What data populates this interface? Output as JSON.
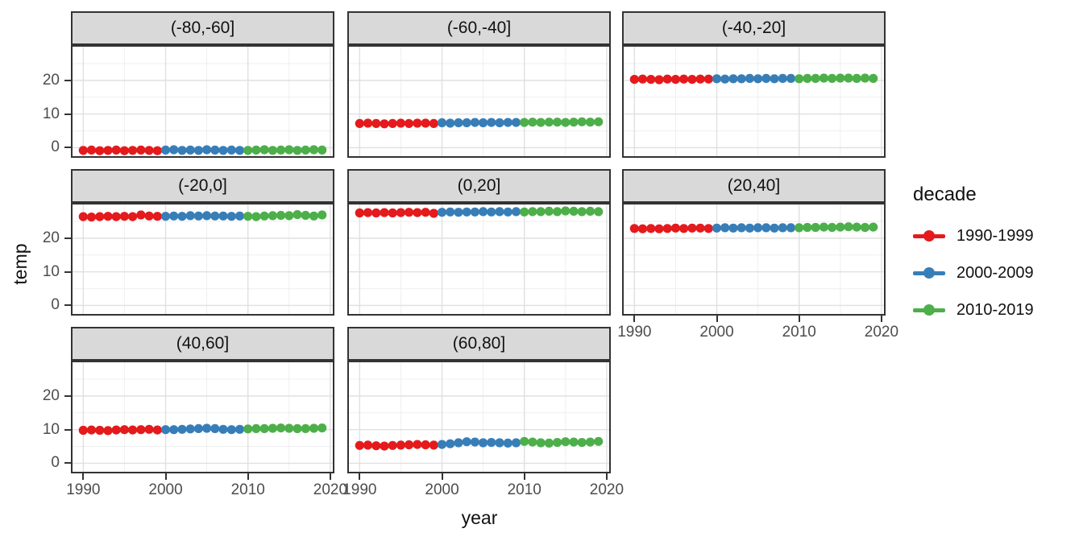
{
  "axes": {
    "x_label": "year",
    "y_label": "temp",
    "x_ticks": [
      "1990",
      "2000",
      "2010",
      "2020"
    ],
    "y_ticks": [
      "20",
      "10",
      "0"
    ]
  },
  "legend": {
    "title": "decade",
    "items": [
      {
        "label": "1990-1999",
        "color": "#E41A1C"
      },
      {
        "label": "2000-2009",
        "color": "#377EB8"
      },
      {
        "label": "2010-2019",
        "color": "#4DAF4A"
      }
    ]
  },
  "chart_data": {
    "type": "scatter",
    "title": "",
    "xlabel": "year",
    "ylabel": "temp",
    "legend_title": "decade",
    "legend_position": "right",
    "grid": true,
    "facet_variable": "latitude band",
    "x": [
      1990,
      1991,
      1992,
      1993,
      1994,
      1995,
      1996,
      1997,
      1998,
      1999,
      2000,
      2001,
      2002,
      2003,
      2004,
      2005,
      2006,
      2007,
      2008,
      2009,
      2010,
      2011,
      2012,
      2013,
      2014,
      2015,
      2016,
      2017,
      2018,
      2019
    ],
    "x_major_ticks": [
      1990,
      2000,
      2010,
      2020
    ],
    "x_minor_ticks": [
      1995,
      2005,
      2015
    ],
    "y_major_ticks": [
      0,
      10,
      20
    ],
    "y_minor_ticks": [
      5,
      15,
      25
    ],
    "x_range": [
      1988.5,
      2020.5
    ],
    "y_range": [
      -3,
      30.5
    ],
    "series": [
      {
        "name": "1990-1999",
        "color": "#E41A1C",
        "years": "1990-1999"
      },
      {
        "name": "2000-2009",
        "color": "#377EB8",
        "years": "2000-2009"
      },
      {
        "name": "2010-2019",
        "color": "#4DAF4A",
        "years": "2010-2019"
      }
    ],
    "facets": [
      {
        "label": "(-80,-60]",
        "row": 0,
        "col": 0,
        "show_y_axis": true,
        "show_x_axis": false,
        "values": [
          -0.8,
          -0.7,
          -0.9,
          -0.8,
          -0.7,
          -0.9,
          -0.8,
          -0.7,
          -0.8,
          -0.9,
          -0.7,
          -0.6,
          -0.8,
          -0.7,
          -0.8,
          -0.6,
          -0.7,
          -0.8,
          -0.7,
          -0.8,
          -0.8,
          -0.7,
          -0.6,
          -0.8,
          -0.7,
          -0.6,
          -0.8,
          -0.7,
          -0.6,
          -0.7
        ]
      },
      {
        "label": "(-60,-40]",
        "row": 0,
        "col": 1,
        "show_y_axis": false,
        "show_x_axis": false,
        "values": [
          7.2,
          7.3,
          7.2,
          7.1,
          7.2,
          7.3,
          7.2,
          7.3,
          7.3,
          7.2,
          7.4,
          7.3,
          7.4,
          7.4,
          7.5,
          7.4,
          7.5,
          7.4,
          7.5,
          7.5,
          7.5,
          7.6,
          7.5,
          7.6,
          7.6,
          7.5,
          7.6,
          7.7,
          7.6,
          7.7
        ]
      },
      {
        "label": "(-40,-20]",
        "row": 0,
        "col": 2,
        "show_y_axis": false,
        "show_x_axis": false,
        "values": [
          20.3,
          20.4,
          20.3,
          20.2,
          20.4,
          20.3,
          20.4,
          20.3,
          20.4,
          20.4,
          20.5,
          20.4,
          20.5,
          20.5,
          20.6,
          20.5,
          20.6,
          20.5,
          20.6,
          20.6,
          20.5,
          20.6,
          20.6,
          20.7,
          20.6,
          20.7,
          20.7,
          20.6,
          20.7,
          20.6
        ]
      },
      {
        "label": "(-20,0]",
        "row": 1,
        "col": 0,
        "show_y_axis": true,
        "show_x_axis": false,
        "values": [
          26.4,
          26.3,
          26.4,
          26.5,
          26.4,
          26.5,
          26.4,
          26.9,
          26.6,
          26.5,
          26.5,
          26.6,
          26.5,
          26.7,
          26.6,
          26.7,
          26.6,
          26.6,
          26.5,
          26.6,
          26.5,
          26.4,
          26.6,
          26.7,
          26.8,
          26.7,
          27.0,
          26.8,
          26.6,
          26.9
        ]
      },
      {
        "label": "(0,20]",
        "row": 1,
        "col": 1,
        "show_y_axis": false,
        "show_x_axis": false,
        "values": [
          27.5,
          27.6,
          27.5,
          27.6,
          27.5,
          27.6,
          27.7,
          27.6,
          27.7,
          27.4,
          27.7,
          27.8,
          27.7,
          27.8,
          27.8,
          27.9,
          27.8,
          27.9,
          27.8,
          27.9,
          27.8,
          27.9,
          27.9,
          28.0,
          27.9,
          28.1,
          28.0,
          27.9,
          28.0,
          27.9
        ]
      },
      {
        "label": "(20,40]",
        "row": 1,
        "col": 2,
        "show_y_axis": false,
        "show_x_axis": true,
        "values": [
          22.9,
          22.8,
          22.9,
          22.8,
          22.9,
          23.0,
          22.9,
          23.0,
          23.0,
          22.9,
          23.0,
          23.1,
          23.0,
          23.1,
          23.0,
          23.1,
          23.1,
          23.0,
          23.1,
          23.1,
          23.1,
          23.2,
          23.2,
          23.3,
          23.2,
          23.3,
          23.4,
          23.3,
          23.2,
          23.3
        ]
      },
      {
        "label": "(40,60]",
        "row": 2,
        "col": 0,
        "show_y_axis": true,
        "show_x_axis": true,
        "values": [
          9.8,
          9.9,
          9.8,
          9.7,
          9.9,
          10.0,
          9.9,
          10.0,
          10.1,
          9.9,
          10.0,
          10.0,
          10.1,
          10.2,
          10.3,
          10.4,
          10.3,
          10.1,
          10.0,
          10.1,
          10.2,
          10.3,
          10.3,
          10.4,
          10.5,
          10.4,
          10.3,
          10.3,
          10.4,
          10.5
        ]
      },
      {
        "label": "(60,80]",
        "row": 2,
        "col": 1,
        "show_y_axis": false,
        "show_x_axis": true,
        "values": [
          5.3,
          5.4,
          5.2,
          5.1,
          5.3,
          5.4,
          5.5,
          5.6,
          5.5,
          5.4,
          5.6,
          5.8,
          6.1,
          6.4,
          6.3,
          6.1,
          6.2,
          6.1,
          6.0,
          6.1,
          6.5,
          6.3,
          6.1,
          6.0,
          6.2,
          6.4,
          6.3,
          6.2,
          6.3,
          6.5
        ]
      }
    ],
    "colors": {
      "strip_background": "#d9d9d9",
      "panel_border": "#333333",
      "grid_major": "#e0e0e0",
      "grid_minor": "#efefef",
      "tick_text": "#4d4d4d"
    }
  }
}
